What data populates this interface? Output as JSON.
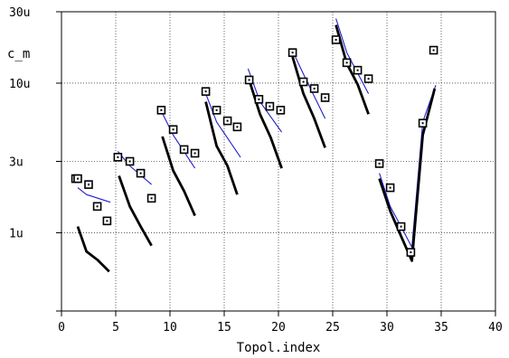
{
  "chart_data": {
    "type": "line",
    "xlabel": "Topol.index",
    "ylabel": "c_m",
    "xlim": [
      0,
      40
    ],
    "ylim": [
      3e-07,
      3e-05
    ],
    "yscale": "log",
    "x_ticks": [
      0,
      5,
      10,
      15,
      20,
      25,
      30,
      35,
      40
    ],
    "x_tick_labels": [
      "0",
      "5",
      "10",
      "15",
      "20",
      "25",
      "30",
      "35",
      "40"
    ],
    "y_ticks": [
      3e-07,
      1e-06,
      3e-06,
      1e-05,
      3e-05
    ],
    "y_tick_labels": [
      "",
      "1u",
      "3u",
      "10u",
      "30u"
    ],
    "grid": true,
    "colors": {
      "thick": "#000000",
      "thin": "#1f1fd0",
      "marker": "#000000",
      "grid": "#000000"
    },
    "series": [
      {
        "style": "square-markers",
        "points": [
          [
            1.3,
            2.3e-06
          ],
          [
            2.5,
            2.1e-06
          ],
          [
            3.3,
            1.5e-06
          ],
          [
            4.2,
            1.2e-06
          ],
          [
            1.5,
            2.3e-06
          ],
          [
            5.2,
            3.2e-06
          ],
          [
            6.3,
            3e-06
          ],
          [
            7.3,
            2.5e-06
          ],
          [
            8.3,
            1.7e-06
          ],
          [
            9.2,
            6.6e-06
          ],
          [
            10.3,
            4.9e-06
          ],
          [
            11.3,
            3.6e-06
          ],
          [
            12.3,
            3.4e-06
          ],
          [
            13.3,
            8.8e-06
          ],
          [
            14.3,
            6.6e-06
          ],
          [
            15.3,
            5.6e-06
          ],
          [
            16.2,
            5.1e-06
          ],
          [
            17.3,
            1.05e-05
          ],
          [
            18.2,
            7.8e-06
          ],
          [
            19.2,
            7e-06
          ],
          [
            20.2,
            6.6e-06
          ],
          [
            21.3,
            1.6e-05
          ],
          [
            22.3,
            1.02e-05
          ],
          [
            23.3,
            9.2e-06
          ],
          [
            24.3,
            8e-06
          ],
          [
            25.3,
            1.95e-05
          ],
          [
            26.3,
            1.37e-05
          ],
          [
            27.3,
            1.22e-05
          ],
          [
            28.3,
            1.07e-05
          ],
          [
            29.3,
            2.9e-06
          ],
          [
            30.3,
            2e-06
          ],
          [
            31.3,
            1.1e-06
          ],
          [
            32.2,
            7.4e-07
          ],
          [
            33.3,
            5.4e-06
          ],
          [
            34.3,
            1.66e-05
          ]
        ]
      },
      {
        "style": "thin-line",
        "segments": [
          [
            [
              1.5,
              2e-06
            ],
            [
              2.3,
              1.8e-06
            ],
            [
              4.5,
              1.6e-06
            ]
          ],
          [
            [
              5.2,
              3.5e-06
            ],
            [
              6.3,
              2.8e-06
            ],
            [
              8.3,
              2.1e-06
            ]
          ],
          [
            [
              9.2,
              6.5e-06
            ],
            [
              10.3,
              4.5e-06
            ],
            [
              12.3,
              2.7e-06
            ]
          ],
          [
            [
              13.3,
              8.5e-06
            ],
            [
              14.3,
              5.5e-06
            ],
            [
              16.5,
              3.2e-06
            ]
          ],
          [
            [
              17.2,
              1.25e-05
            ],
            [
              18.3,
              7.5e-06
            ],
            [
              20.3,
              4.7e-06
            ]
          ],
          [
            [
              21.2,
              1.7e-05
            ],
            [
              22.3,
              1.15e-05
            ],
            [
              24.3,
              5.8e-06
            ]
          ],
          [
            [
              25.3,
              2.7e-05
            ],
            [
              26.3,
              1.6e-05
            ],
            [
              28.3,
              8.5e-06
            ]
          ],
          [
            [
              29.3,
              2.5e-06
            ],
            [
              30.3,
              1.5e-06
            ],
            [
              31.3,
              1.1e-06
            ],
            [
              32.3,
              8e-07
            ],
            [
              33.3,
              5.5e-06
            ],
            [
              34.5,
              9.7e-06
            ]
          ]
        ]
      },
      {
        "style": "thick-line",
        "segments": [
          [
            [
              1.5,
              1.1e-06
            ],
            [
              2.3,
              7.5e-07
            ],
            [
              3.3,
              6.6e-07
            ],
            [
              4.4,
              5.5e-07
            ]
          ],
          [
            [
              5.3,
              2.4e-06
            ],
            [
              6.3,
              1.5e-06
            ],
            [
              7.3,
              1.1e-06
            ],
            [
              8.3,
              8.2e-07
            ]
          ],
          [
            [
              9.3,
              4.4e-06
            ],
            [
              10.3,
              2.6e-06
            ],
            [
              11.3,
              1.9e-06
            ],
            [
              12.3,
              1.3e-06
            ]
          ],
          [
            [
              13.3,
              7.5e-06
            ],
            [
              14.3,
              3.8e-06
            ],
            [
              15.3,
              2.8e-06
            ],
            [
              16.2,
              1.8e-06
            ]
          ],
          [
            [
              17.3,
              1.05e-05
            ],
            [
              18.3,
              6.2e-06
            ],
            [
              19.3,
              4.3e-06
            ],
            [
              20.3,
              2.7e-06
            ]
          ],
          [
            [
              21.3,
              1.5e-05
            ],
            [
              22.3,
              8.5e-06
            ],
            [
              23.3,
              5.8e-06
            ],
            [
              24.3,
              3.7e-06
            ]
          ],
          [
            [
              25.3,
              2.45e-05
            ],
            [
              26.3,
              1.35e-05
            ],
            [
              27.3,
              9.8e-06
            ],
            [
              28.3,
              6.2e-06
            ]
          ],
          [
            [
              29.3,
              2.3e-06
            ],
            [
              30.3,
              1.4e-06
            ],
            [
              31.3,
              9.5e-07
            ],
            [
              32.3,
              6.5e-07
            ],
            [
              33.3,
              4.5e-06
            ],
            [
              34.4,
              9.2e-06
            ]
          ]
        ]
      }
    ]
  }
}
